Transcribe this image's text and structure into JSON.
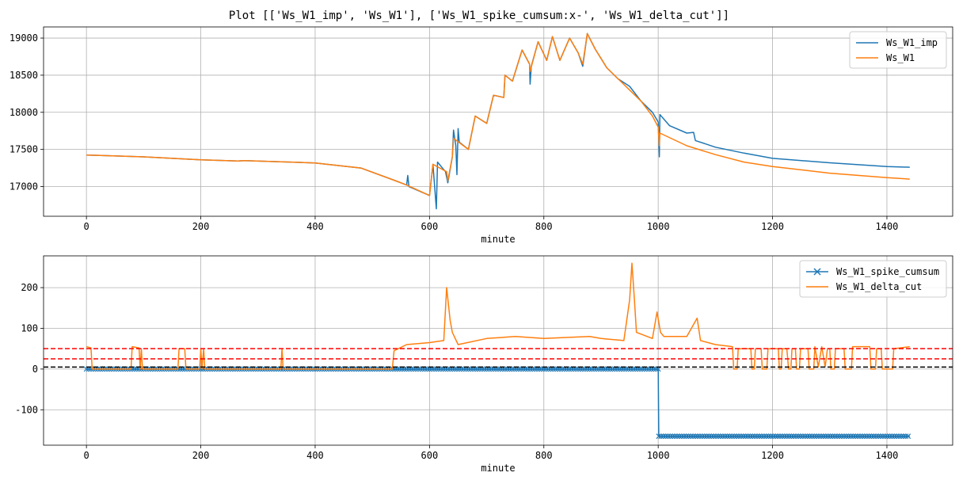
{
  "figure": {
    "title": "Plot [['Ws_W1_imp', 'Ws_W1'], ['Ws_W1_spike_cumsum:x-', 'Ws_W1_delta_cut']]"
  },
  "chart_data": [
    {
      "type": "line",
      "xlabel": "minute",
      "ylabel": "",
      "xlim": [
        -75,
        1515
      ],
      "ylim": [
        16600,
        19150
      ],
      "xticks": [
        0,
        200,
        400,
        600,
        800,
        1000,
        1200,
        1400
      ],
      "yticks": [
        17000,
        17500,
        18000,
        18500,
        19000
      ],
      "grid": true,
      "legend": "top-right",
      "series": [
        {
          "name": "Ws_W1_imp",
          "color": "#1f77b4",
          "points": [
            [
              0,
              17425
            ],
            [
              100,
              17400
            ],
            [
              200,
              17360
            ],
            [
              265,
              17345
            ],
            [
              275,
              17350
            ],
            [
              400,
              17318
            ],
            [
              480,
              17250
            ],
            [
              540,
              17080
            ],
            [
              560,
              17020
            ],
            [
              562,
              17150
            ],
            [
              564,
              17000
            ],
            [
              600,
              16880
            ],
            [
              606,
              17300
            ],
            [
              612,
              16700
            ],
            [
              614,
              17330
            ],
            [
              628,
              17200
            ],
            [
              632,
              17050
            ],
            [
              640,
              17400
            ],
            [
              642,
              17760
            ],
            [
              646,
              17550
            ],
            [
              648,
              17160
            ],
            [
              650,
              17780
            ],
            [
              652,
              17600
            ],
            [
              668,
              17500
            ],
            [
              680,
              17950
            ],
            [
              700,
              17850
            ],
            [
              712,
              18230
            ],
            [
              730,
              18200
            ],
            [
              732,
              18500
            ],
            [
              745,
              18420
            ],
            [
              762,
              18840
            ],
            [
              775,
              18650
            ],
            [
              776,
              18380
            ],
            [
              778,
              18620
            ],
            [
              790,
              18950
            ],
            [
              805,
              18700
            ],
            [
              815,
              19020
            ],
            [
              828,
              18700
            ],
            [
              845,
              19000
            ],
            [
              860,
              18800
            ],
            [
              868,
              18620
            ],
            [
              876,
              19060
            ],
            [
              890,
              18850
            ],
            [
              910,
              18600
            ],
            [
              930,
              18450
            ],
            [
              950,
              18350
            ],
            [
              970,
              18150
            ],
            [
              990,
              18000
            ],
            [
              1000,
              17870
            ],
            [
              1002,
              17400
            ],
            [
              1003,
              17970
            ],
            [
              1020,
              17820
            ],
            [
              1050,
              17720
            ],
            [
              1062,
              17730
            ],
            [
              1065,
              17620
            ],
            [
              1100,
              17530
            ],
            [
              1150,
              17450
            ],
            [
              1200,
              17380
            ],
            [
              1300,
              17320
            ],
            [
              1400,
              17270
            ],
            [
              1440,
              17260
            ]
          ]
        },
        {
          "name": "Ws_W1",
          "color": "#ff7f0e",
          "points": [
            [
              0,
              17425
            ],
            [
              100,
              17400
            ],
            [
              200,
              17360
            ],
            [
              265,
              17345
            ],
            [
              275,
              17350
            ],
            [
              400,
              17318
            ],
            [
              480,
              17250
            ],
            [
              540,
              17080
            ],
            [
              560,
              17020
            ],
            [
              600,
              16880
            ],
            [
              606,
              17300
            ],
            [
              630,
              17200
            ],
            [
              632,
              17080
            ],
            [
              640,
              17400
            ],
            [
              642,
              17650
            ],
            [
              668,
              17500
            ],
            [
              680,
              17950
            ],
            [
              700,
              17850
            ],
            [
              712,
              18230
            ],
            [
              730,
              18200
            ],
            [
              732,
              18500
            ],
            [
              745,
              18420
            ],
            [
              762,
              18840
            ],
            [
              775,
              18650
            ],
            [
              776,
              18550
            ],
            [
              790,
              18950
            ],
            [
              805,
              18700
            ],
            [
              815,
              19020
            ],
            [
              828,
              18700
            ],
            [
              845,
              19000
            ],
            [
              860,
              18800
            ],
            [
              868,
              18650
            ],
            [
              876,
              19060
            ],
            [
              890,
              18850
            ],
            [
              910,
              18600
            ],
            [
              930,
              18450
            ],
            [
              950,
              18300
            ],
            [
              970,
              18150
            ],
            [
              990,
              17950
            ],
            [
              1000,
              17800
            ],
            [
              1002,
              17550
            ],
            [
              1003,
              17720
            ],
            [
              1050,
              17550
            ],
            [
              1100,
              17430
            ],
            [
              1150,
              17330
            ],
            [
              1200,
              17270
            ],
            [
              1300,
              17180
            ],
            [
              1400,
              17120
            ],
            [
              1440,
              17100
            ]
          ]
        }
      ]
    },
    {
      "type": "line",
      "xlabel": "minute",
      "ylabel": "",
      "xlim": [
        -75,
        1515
      ],
      "ylim": [
        -187,
        278
      ],
      "xticks": [
        0,
        200,
        400,
        600,
        800,
        1000,
        1200,
        1400
      ],
      "yticks": [
        -100,
        0,
        100,
        200
      ],
      "grid": true,
      "legend": "top-right",
      "hlines": [
        {
          "y": 50,
          "color": "#ff0000",
          "style": "dashed"
        },
        {
          "y": 25,
          "color": "#ff0000",
          "style": "dashed"
        },
        {
          "y": 5,
          "color": "#000000",
          "style": "dashed"
        }
      ],
      "series": [
        {
          "name": "Ws_W1_spike_cumsum",
          "color": "#1f77b4",
          "marker": "x",
          "points": [
            [
              0,
              0
            ],
            [
              1000,
              0
            ],
            [
              1001,
              -165
            ],
            [
              1440,
              -165
            ]
          ]
        },
        {
          "name": "Ws_W1_delta_cut",
          "color": "#ff7f0e",
          "points": [
            [
              0,
              55
            ],
            [
              8,
              52
            ],
            [
              10,
              0
            ],
            [
              78,
              0
            ],
            [
              80,
              55
            ],
            [
              92,
              52
            ],
            [
              94,
              0
            ],
            [
              96,
              50
            ],
            [
              98,
              0
            ],
            [
              160,
              0
            ],
            [
              162,
              50
            ],
            [
              172,
              50
            ],
            [
              174,
              0
            ],
            [
              198,
              0
            ],
            [
              200,
              50
            ],
            [
              202,
              0
            ],
            [
              205,
              50
            ],
            [
              207,
              0
            ],
            [
              340,
              0
            ],
            [
              342,
              50
            ],
            [
              344,
              0
            ],
            [
              535,
              0
            ],
            [
              538,
              45
            ],
            [
              560,
              60
            ],
            [
              600,
              65
            ],
            [
              625,
              70
            ],
            [
              630,
              200
            ],
            [
              636,
              120
            ],
            [
              640,
              90
            ],
            [
              650,
              60
            ],
            [
              700,
              75
            ],
            [
              750,
              80
            ],
            [
              800,
              75
            ],
            [
              880,
              80
            ],
            [
              900,
              75
            ],
            [
              940,
              70
            ],
            [
              950,
              170
            ],
            [
              954,
              260
            ],
            [
              958,
              180
            ],
            [
              962,
              90
            ],
            [
              990,
              75
            ],
            [
              998,
              140
            ],
            [
              1004,
              90
            ],
            [
              1010,
              80
            ],
            [
              1050,
              80
            ],
            [
              1068,
              125
            ],
            [
              1074,
              70
            ],
            [
              1100,
              60
            ],
            [
              1130,
              55
            ],
            [
              1132,
              0
            ],
            [
              1138,
              0
            ],
            [
              1140,
              50
            ],
            [
              1162,
              50
            ],
            [
              1164,
              0
            ],
            [
              1168,
              0
            ],
            [
              1170,
              50
            ],
            [
              1180,
              50
            ],
            [
              1182,
              0
            ],
            [
              1190,
              0
            ],
            [
              1192,
              50
            ],
            [
              1210,
              50
            ],
            [
              1212,
              0
            ],
            [
              1215,
              0
            ],
            [
              1217,
              50
            ],
            [
              1225,
              50
            ],
            [
              1228,
              0
            ],
            [
              1232,
              0
            ],
            [
              1234,
              50
            ],
            [
              1240,
              50
            ],
            [
              1242,
              0
            ],
            [
              1247,
              0
            ],
            [
              1249,
              50
            ],
            [
              1262,
              50
            ],
            [
              1264,
              0
            ],
            [
              1272,
              0
            ],
            [
              1274,
              55
            ],
            [
              1280,
              5
            ],
            [
              1286,
              55
            ],
            [
              1292,
              5
            ],
            [
              1296,
              50
            ],
            [
              1300,
              50
            ],
            [
              1302,
              0
            ],
            [
              1308,
              0
            ],
            [
              1310,
              50
            ],
            [
              1325,
              50
            ],
            [
              1327,
              0
            ],
            [
              1338,
              0
            ],
            [
              1340,
              55
            ],
            [
              1370,
              55
            ],
            [
              1372,
              0
            ],
            [
              1380,
              0
            ],
            [
              1382,
              50
            ],
            [
              1390,
              50
            ],
            [
              1392,
              0
            ],
            [
              1410,
              0
            ],
            [
              1412,
              50
            ],
            [
              1440,
              55
            ]
          ]
        }
      ]
    }
  ]
}
